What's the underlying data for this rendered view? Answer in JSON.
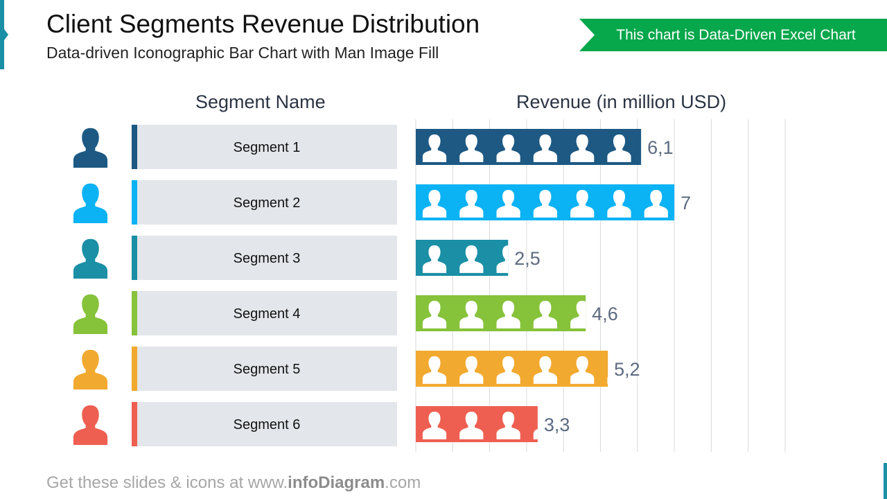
{
  "header": {
    "title": "Client Segments Revenue Distribution",
    "subtitle": "Data-driven Iconographic Bar Chart with Man Image Fill",
    "ribbon": "This chart is Data-Driven Excel Chart"
  },
  "footer": {
    "prefix": "Get these slides & icons at www.",
    "brand": "infoDiagram",
    "suffix": ".com"
  },
  "chart_data": {
    "type": "bar",
    "orientation": "horizontal",
    "column_headers": [
      "Segment Name",
      "Revenue (in million USD)"
    ],
    "categories": [
      "Segment 1",
      "Segment 2",
      "Segment 3",
      "Segment 4",
      "Segment 5",
      "Segment 6"
    ],
    "values": [
      6.1,
      7,
      2.5,
      4.6,
      5.2,
      3.3
    ],
    "data_labels": [
      "6,1",
      "7",
      "2,5",
      "4,6",
      "5,2",
      "3,3"
    ],
    "colors": [
      "#1d5983",
      "#0bb2f4",
      "#1a8fa5",
      "#86c23a",
      "#f2a92f",
      "#ee5f51"
    ],
    "xlim": [
      0,
      10
    ],
    "grid": true,
    "icon": "man-silhouette-icon"
  }
}
